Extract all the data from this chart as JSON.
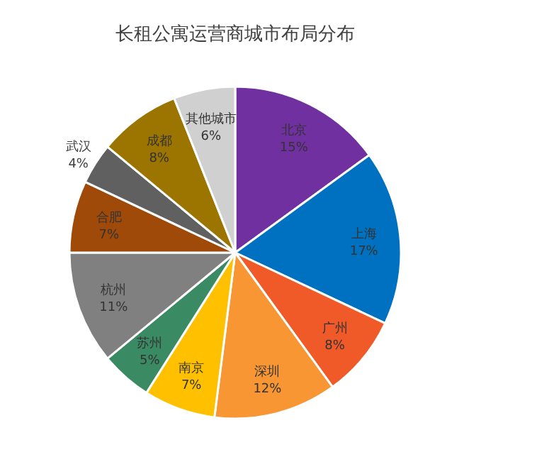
{
  "chart_data": {
    "type": "pie",
    "title": "长租公寓运营商城市布局分布",
    "categories": [
      "北京",
      "上海",
      "广州",
      "深圳",
      "南京",
      "苏州",
      "杭州",
      "合肥",
      "武汉",
      "成都",
      "其他城市"
    ],
    "values": [
      15,
      17,
      8,
      12,
      7,
      5,
      11,
      7,
      4,
      8,
      6
    ],
    "colors": [
      "#7030a0",
      "#0070c0",
      "#f05a28",
      "#f79632",
      "#ffc000",
      "#3a8a64",
      "#808080",
      "#a04a0a",
      "#606060",
      "#9c7400",
      "#d0d0d0"
    ],
    "value_labels": [
      "15%",
      "17%",
      "8%",
      "12%",
      "7%",
      "5%",
      "11%",
      "7%",
      "4%",
      "8%",
      "6%"
    ]
  }
}
